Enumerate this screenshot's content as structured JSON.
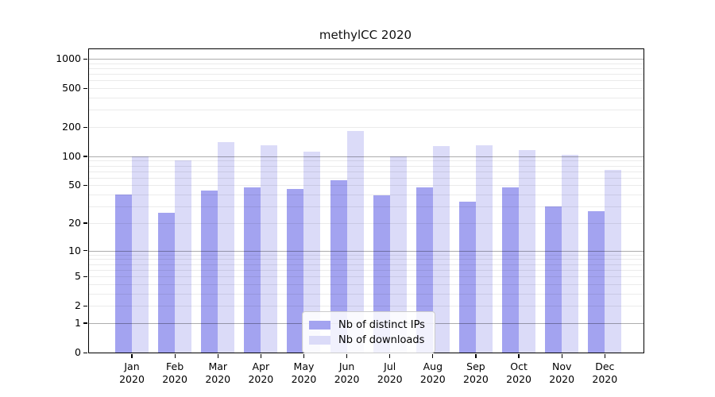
{
  "chart_data": {
    "type": "bar",
    "title": "methylCC 2020",
    "yscale": "log1p",
    "ylim": [
      0,
      1253
    ],
    "yticks": [
      0,
      1,
      2,
      5,
      10,
      20,
      50,
      100,
      200,
      500,
      1000
    ],
    "grid": true,
    "legend_position": "lower center",
    "x_categories": [
      "Jan",
      "Feb",
      "Mar",
      "Apr",
      "May",
      "Jun",
      "Jul",
      "Aug",
      "Sep",
      "Oct",
      "Nov",
      "Dec"
    ],
    "x_year": "2020",
    "series": [
      {
        "name": "Nb of distinct IPs",
        "color": "#a3a3f0",
        "values": [
          40,
          26,
          44,
          48,
          46,
          57,
          39,
          48,
          34,
          48,
          30,
          27
        ]
      },
      {
        "name": "Nb of downloads",
        "color": "#dbdbf8",
        "values": [
          100,
          90,
          140,
          129,
          112,
          182,
          100,
          127,
          130,
          115,
          103,
          73
        ]
      }
    ],
    "colors": {
      "major_gridline": "#adadad",
      "minor_gridline": "#ebebeb",
      "axis_spine": "#000000",
      "background": "#ffffff"
    }
  }
}
